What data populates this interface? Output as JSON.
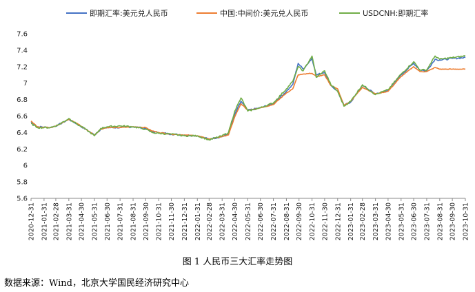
{
  "chart_data": {
    "type": "line",
    "title": "",
    "xlabel": "",
    "ylabel": "",
    "ylim": [
      5.6,
      7.6
    ],
    "yticks": [
      "7.6",
      "7.4",
      "7.2",
      "7",
      "6.8",
      "6.6",
      "6.4",
      "6.2",
      "6",
      "5.8",
      "5.6"
    ],
    "grid": false,
    "legend_position": "top",
    "x_ticks": [
      "2020-12-31",
      "2021-01-31",
      "2021-02-28",
      "2021-03-31",
      "2021-04-30",
      "2021-05-31",
      "2021-06-30",
      "2021-07-31",
      "2021-08-31",
      "2021-09-30",
      "2021-10-31",
      "2021-11-30",
      "2021-12-31",
      "2022-01-31",
      "2022-02-28",
      "2022-03-31",
      "2022-04-30",
      "2022-05-31",
      "2022-06-30",
      "2022-07-31",
      "2022-08-31",
      "2022-09-30",
      "2022-10-31",
      "2022-11-30",
      "2022-12-31",
      "2023-01-31",
      "2023-02-28",
      "2023-03-31",
      "2023-04-30",
      "2023-05-31",
      "2023-06-30",
      "2023-07-31",
      "2023-08-31",
      "2023-09-30",
      "2023-10-31"
    ],
    "series": [
      {
        "name": "即期汇率:美元兑人民币",
        "color": "#4472c4",
        "points": [
          [
            "2020-12-31",
            6.53
          ],
          [
            "2021-01-15",
            6.47
          ],
          [
            "2021-02-15",
            6.46
          ],
          [
            "2021-03-05",
            6.49
          ],
          [
            "2021-03-31",
            6.56
          ],
          [
            "2021-04-20",
            6.5
          ],
          [
            "2021-05-10",
            6.44
          ],
          [
            "2021-05-31",
            6.37
          ],
          [
            "2021-06-15",
            6.44
          ],
          [
            "2021-06-30",
            6.46
          ],
          [
            "2021-07-31",
            6.46
          ],
          [
            "2021-08-31",
            6.47
          ],
          [
            "2021-09-30",
            6.45
          ],
          [
            "2021-10-15",
            6.41
          ],
          [
            "2021-10-31",
            6.4
          ],
          [
            "2021-11-30",
            6.38
          ],
          [
            "2021-12-31",
            6.37
          ],
          [
            "2022-01-31",
            6.36
          ],
          [
            "2022-02-28",
            6.32
          ],
          [
            "2022-03-31",
            6.35
          ],
          [
            "2022-04-15",
            6.38
          ],
          [
            "2022-04-30",
            6.62
          ],
          [
            "2022-05-15",
            6.78
          ],
          [
            "2022-05-31",
            6.67
          ],
          [
            "2022-06-30",
            6.7
          ],
          [
            "2022-07-31",
            6.75
          ],
          [
            "2022-08-31",
            6.9
          ],
          [
            "2022-09-15",
            6.98
          ],
          [
            "2022-09-28",
            7.24
          ],
          [
            "2022-10-10",
            7.17
          ],
          [
            "2022-10-31",
            7.3
          ],
          [
            "2022-11-10",
            7.1
          ],
          [
            "2022-11-30",
            7.13
          ],
          [
            "2022-12-15",
            6.97
          ],
          [
            "2022-12-31",
            6.9
          ],
          [
            "2023-01-15",
            6.73
          ],
          [
            "2023-01-31",
            6.77
          ],
          [
            "2023-02-28",
            6.97
          ],
          [
            "2023-03-31",
            6.87
          ],
          [
            "2023-04-30",
            6.91
          ],
          [
            "2023-05-31",
            7.1
          ],
          [
            "2023-06-30",
            7.24
          ],
          [
            "2023-07-15",
            7.16
          ],
          [
            "2023-07-31",
            7.15
          ],
          [
            "2023-08-20",
            7.29
          ],
          [
            "2023-08-31",
            7.28
          ],
          [
            "2023-09-30",
            7.3
          ],
          [
            "2023-10-31",
            7.31
          ]
        ]
      },
      {
        "name": "中国:中间价:美元兑人民币",
        "color": "#ed7d31",
        "points": [
          [
            "2020-12-31",
            6.54
          ],
          [
            "2021-01-15",
            6.47
          ],
          [
            "2021-02-15",
            6.46
          ],
          [
            "2021-03-05",
            6.49
          ],
          [
            "2021-03-31",
            6.56
          ],
          [
            "2021-04-20",
            6.51
          ],
          [
            "2021-05-10",
            6.44
          ],
          [
            "2021-05-31",
            6.37
          ],
          [
            "2021-06-15",
            6.44
          ],
          [
            "2021-06-30",
            6.46
          ],
          [
            "2021-07-31",
            6.46
          ],
          [
            "2021-08-31",
            6.47
          ],
          [
            "2021-09-30",
            6.46
          ],
          [
            "2021-10-15",
            6.42
          ],
          [
            "2021-10-31",
            6.4
          ],
          [
            "2021-11-30",
            6.38
          ],
          [
            "2021-12-31",
            6.37
          ],
          [
            "2022-01-31",
            6.36
          ],
          [
            "2022-02-28",
            6.32
          ],
          [
            "2022-03-31",
            6.35
          ],
          [
            "2022-04-15",
            6.37
          ],
          [
            "2022-04-30",
            6.59
          ],
          [
            "2022-05-15",
            6.75
          ],
          [
            "2022-05-31",
            6.67
          ],
          [
            "2022-06-30",
            6.7
          ],
          [
            "2022-07-31",
            6.74
          ],
          [
            "2022-08-31",
            6.88
          ],
          [
            "2022-09-15",
            6.93
          ],
          [
            "2022-09-28",
            7.1
          ],
          [
            "2022-10-31",
            7.12
          ],
          [
            "2022-11-10",
            7.08
          ],
          [
            "2022-11-30",
            7.1
          ],
          [
            "2022-12-15",
            6.97
          ],
          [
            "2022-12-31",
            6.93
          ],
          [
            "2023-01-15",
            6.73
          ],
          [
            "2023-01-31",
            6.78
          ],
          [
            "2023-02-28",
            6.95
          ],
          [
            "2023-03-31",
            6.87
          ],
          [
            "2023-04-30",
            6.9
          ],
          [
            "2023-05-31",
            7.08
          ],
          [
            "2023-06-30",
            7.2
          ],
          [
            "2023-07-15",
            7.14
          ],
          [
            "2023-07-31",
            7.14
          ],
          [
            "2023-08-20",
            7.19
          ],
          [
            "2023-08-31",
            7.17
          ],
          [
            "2023-09-15",
            7.17
          ],
          [
            "2023-09-30",
            7.17
          ],
          [
            "2023-10-31",
            7.17
          ]
        ]
      },
      {
        "name": "USDCNH:即期汇率",
        "color": "#70ad47",
        "points": [
          [
            "2020-12-31",
            6.51
          ],
          [
            "2021-01-15",
            6.46
          ],
          [
            "2021-02-15",
            6.46
          ],
          [
            "2021-03-05",
            6.49
          ],
          [
            "2021-03-31",
            6.57
          ],
          [
            "2021-04-20",
            6.5
          ],
          [
            "2021-05-10",
            6.44
          ],
          [
            "2021-05-31",
            6.36
          ],
          [
            "2021-06-15",
            6.45
          ],
          [
            "2021-06-30",
            6.47
          ],
          [
            "2021-07-31",
            6.48
          ],
          [
            "2021-08-31",
            6.47
          ],
          [
            "2021-09-30",
            6.44
          ],
          [
            "2021-10-15",
            6.4
          ],
          [
            "2021-10-31",
            6.39
          ],
          [
            "2021-11-30",
            6.38
          ],
          [
            "2021-12-31",
            6.36
          ],
          [
            "2022-01-31",
            6.36
          ],
          [
            "2022-02-28",
            6.31
          ],
          [
            "2022-03-31",
            6.36
          ],
          [
            "2022-04-15",
            6.4
          ],
          [
            "2022-04-30",
            6.66
          ],
          [
            "2022-05-15",
            6.82
          ],
          [
            "2022-05-31",
            6.66
          ],
          [
            "2022-06-30",
            6.7
          ],
          [
            "2022-07-31",
            6.76
          ],
          [
            "2022-08-31",
            6.93
          ],
          [
            "2022-09-15",
            7.02
          ],
          [
            "2022-09-28",
            7.2
          ],
          [
            "2022-10-10",
            7.15
          ],
          [
            "2022-10-31",
            7.33
          ],
          [
            "2022-11-10",
            7.07
          ],
          [
            "2022-11-30",
            7.15
          ],
          [
            "2022-12-15",
            6.98
          ],
          [
            "2022-12-31",
            6.9
          ],
          [
            "2023-01-15",
            6.72
          ],
          [
            "2023-01-31",
            6.78
          ],
          [
            "2023-02-28",
            6.98
          ],
          [
            "2023-03-31",
            6.86
          ],
          [
            "2023-04-30",
            6.92
          ],
          [
            "2023-05-31",
            7.11
          ],
          [
            "2023-06-30",
            7.26
          ],
          [
            "2023-07-15",
            7.16
          ],
          [
            "2023-07-31",
            7.16
          ],
          [
            "2023-08-20",
            7.33
          ],
          [
            "2023-08-31",
            7.29
          ],
          [
            "2023-09-30",
            7.31
          ],
          [
            "2023-10-31",
            7.33
          ]
        ]
      }
    ]
  },
  "caption": "图 1 人民币三大汇率走势图",
  "source": "数据来源：Wind，北京大学国民经济研究中心"
}
